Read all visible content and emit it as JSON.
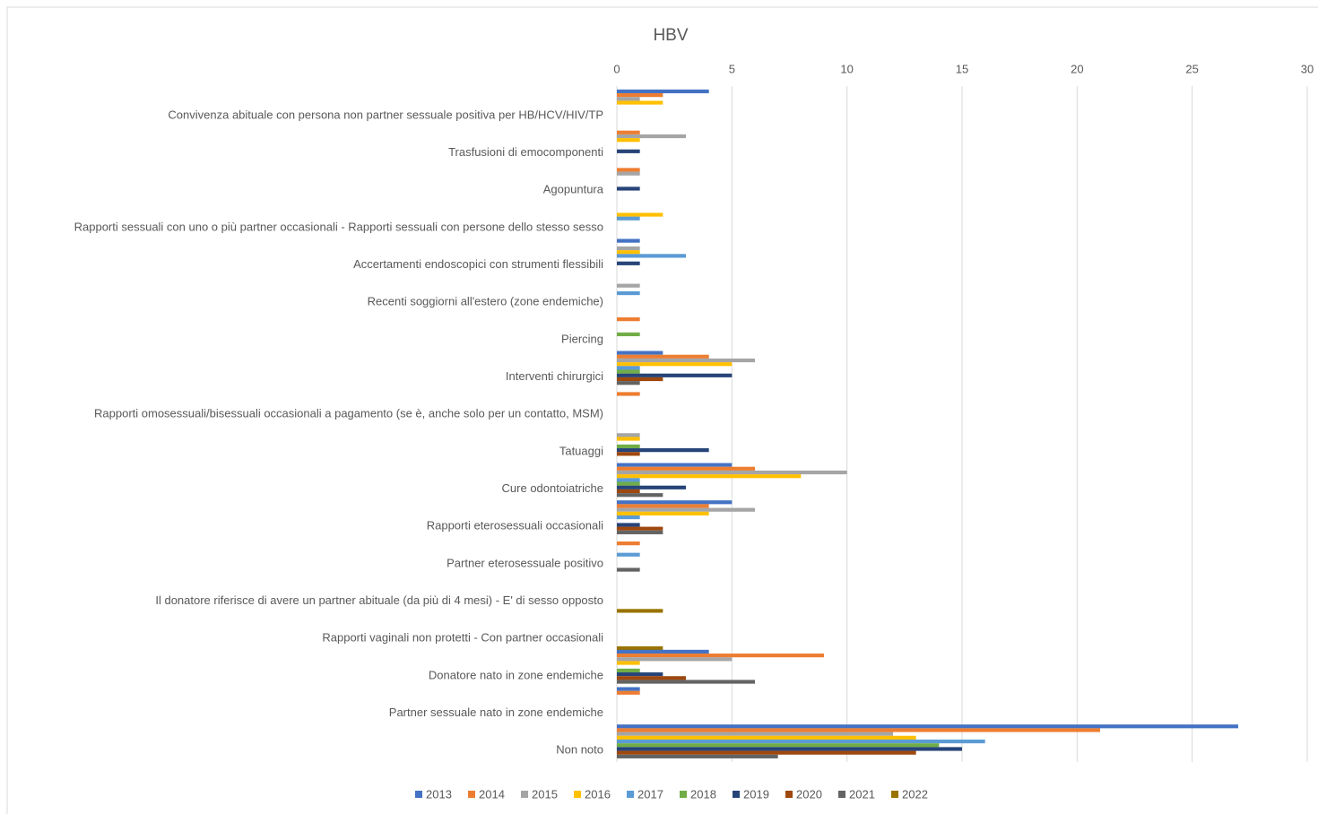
{
  "chart_data": {
    "type": "barh",
    "title": "HBV",
    "categories": [
      "Convivenza abituale con persona non partner sessuale positiva per HB/HCV/HIV/TP",
      "Trasfusioni di emocomponenti",
      "Agopuntura",
      "Rapporti sessuali con uno o più partner occasionali - Rapporti sessuali con persone dello stesso sesso",
      "Accertamenti endoscopici con strumenti flessibili",
      "Recenti soggiorni all'estero (zone endemiche)",
      "Piercing",
      "Interventi chirurgici",
      "Rapporti omosessuali/bisessuali occasionali a pagamento (se è, anche solo per un contatto, MSM)",
      "Tatuaggi",
      "Cure odontoiatriche",
      "Rapporti eterosessuali occasionali",
      "Partner eterosessuale positivo",
      "Il donatore riferisce di avere un partner abituale (da più di 4 mesi) - E' di sesso opposto",
      "Rapporti vaginali non protetti - Con partner occasionali",
      "Donatore nato in zone endemiche",
      "Partner sessuale nato in zone endemiche",
      "Non noto"
    ],
    "series": [
      {
        "name": "2013",
        "color": "#4472c4",
        "values": [
          4,
          0,
          0,
          0,
          1,
          0,
          0,
          2,
          0,
          0,
          5,
          5,
          0,
          0,
          0,
          4,
          1,
          27
        ]
      },
      {
        "name": "2014",
        "color": "#ed7d31",
        "values": [
          2,
          1,
          1,
          0,
          0,
          0,
          1,
          4,
          1,
          0,
          6,
          4,
          1,
          0,
          0,
          9,
          1,
          21
        ]
      },
      {
        "name": "2015",
        "color": "#a5a5a5",
        "values": [
          1,
          3,
          1,
          0,
          1,
          1,
          0,
          6,
          0,
          1,
          10,
          6,
          0,
          0,
          0,
          5,
          0,
          12
        ]
      },
      {
        "name": "2016",
        "color": "#ffc000",
        "values": [
          2,
          1,
          0,
          2,
          1,
          0,
          0,
          5,
          0,
          1,
          8,
          4,
          0,
          0,
          0,
          1,
          0,
          13
        ]
      },
      {
        "name": "2017",
        "color": "#5b9bd5",
        "values": [
          0,
          0,
          0,
          1,
          3,
          1,
          0,
          1,
          0,
          0,
          1,
          1,
          1,
          0,
          0,
          0,
          0,
          16
        ]
      },
      {
        "name": "2018",
        "color": "#70ad47",
        "values": [
          0,
          0,
          0,
          0,
          0,
          0,
          1,
          1,
          0,
          1,
          1,
          0,
          0,
          0,
          0,
          1,
          0,
          14
        ]
      },
      {
        "name": "2019",
        "color": "#264478",
        "values": [
          0,
          1,
          1,
          0,
          1,
          0,
          0,
          5,
          0,
          4,
          3,
          1,
          0,
          0,
          0,
          2,
          0,
          15
        ]
      },
      {
        "name": "2020",
        "color": "#9e480e",
        "values": [
          0,
          0,
          0,
          0,
          0,
          0,
          0,
          2,
          0,
          1,
          1,
          2,
          0,
          0,
          0,
          3,
          0,
          13
        ]
      },
      {
        "name": "2021",
        "color": "#636363",
        "values": [
          0,
          0,
          0,
          0,
          0,
          0,
          0,
          1,
          0,
          0,
          2,
          2,
          1,
          0,
          0,
          6,
          0,
          7
        ]
      },
      {
        "name": "2022",
        "color": "#997300",
        "values": [
          0,
          0,
          0,
          0,
          0,
          0,
          0,
          0,
          0,
          0,
          0,
          0,
          0,
          2,
          2,
          0,
          0,
          0
        ]
      }
    ],
    "xlim": [
      0,
      30
    ],
    "xticks": [
      0,
      5,
      10,
      15,
      20,
      25,
      30
    ],
    "grid": true,
    "legend": "bottom"
  }
}
